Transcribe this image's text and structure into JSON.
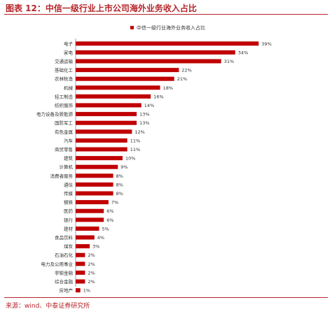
{
  "figure": {
    "title": "图表 12：中信一级行业上市公司海外业务收入占比",
    "source": "来源：wind、中泰证券研究所"
  },
  "colors": {
    "bar": "#c00000",
    "accent": "#b5252a",
    "text": "#333333"
  },
  "chart_data": {
    "type": "bar",
    "orientation": "horizontal",
    "legend": {
      "position": "top",
      "label": "中信一级行业海外业务收入占比"
    },
    "categories": [
      "电子",
      "家电",
      "交通运输",
      "基础化工",
      "农林牧渔",
      "机械",
      "轻工制造",
      "纺织服饰",
      "电力设备及新能源",
      "国防军工",
      "有色金属",
      "汽车",
      "商贸零售",
      "建筑",
      "计算机",
      "消费者服务",
      "通信",
      "传媒",
      "钢铁",
      "医药",
      "银行",
      "建材",
      "食品饮料",
      "煤炭",
      "石油石化",
      "电力及公用事业",
      "非银金融",
      "综合金融",
      "房地产"
    ],
    "values": [
      39,
      34,
      31,
      22,
      21,
      18,
      16,
      14,
      13,
      13,
      12,
      11,
      11,
      10,
      9,
      8,
      8,
      8,
      7,
      6,
      6,
      5,
      4,
      3,
      2,
      2,
      2,
      2,
      1
    ],
    "value_labels": [
      "39%",
      "34%",
      "31%",
      "22%",
      "21%",
      "18%",
      "16%",
      "14%",
      "13%",
      "13%",
      "12%",
      "11%",
      "11%",
      "10%",
      "9%",
      "8%",
      "8%",
      "8%",
      "7%",
      "6%",
      "6%",
      "5%",
      "4%",
      "3%",
      "2%",
      "2%",
      "2%",
      "2%",
      "1%"
    ],
    "xlim": [
      0,
      40
    ]
  }
}
